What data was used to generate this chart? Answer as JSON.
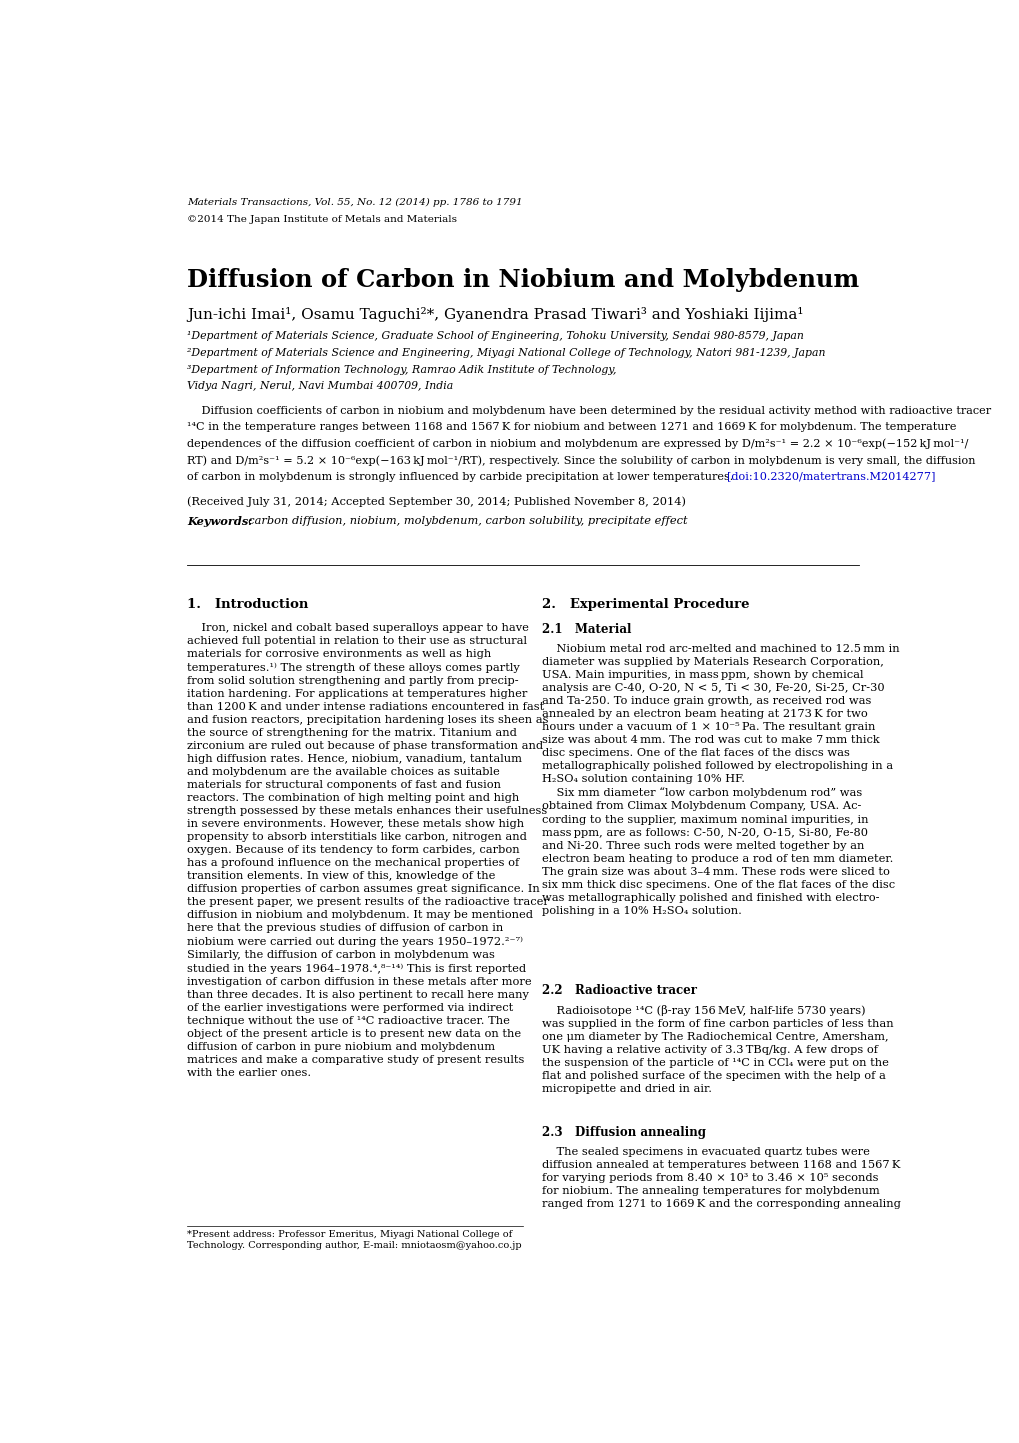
{
  "title": "Diffusion of Carbon in Niobium and Molybdenum",
  "journal_line1": "Materials Transactions, Vol. 55, No. 12 (2014) pp. 1786 to 1791",
  "journal_line2": "©2014 The Japan Institute of Metals and Materials",
  "authors": "Jun-ichi Imai¹, Osamu Taguchi²*, Gyanendra Prasad Tiwari³ and Yoshiaki Iijima¹",
  "affil1": "¹Department of Materials Science, Graduate School of Engineering, Tohoku University, Sendai 980-8579, Japan",
  "affil2": "²Department of Materials Science and Engineering, Miyagi National College of Technology, Natori 981-1239, Japan",
  "affil3": "³Department of Information Technology, Ramrao Adik Institute of Technology,",
  "affil4": "Vidya Nagri, Nerul, Navi Mumbai 400709, India",
  "abstract_line1": "    Diffusion coefficients of carbon in niobium and molybdenum have been determined by the residual activity method with radioactive tracer",
  "abstract_line2": "¹⁴C in the temperature ranges between 1168 and 1567 K for niobium and between 1271 and 1669 K for molybdenum. The temperature",
  "abstract_line3": "dependences of the diffusion coefficient of carbon in niobium and molybdenum are expressed by D/m²s⁻¹ = 2.2 × 10⁻⁶exp(−152 kJ mol⁻¹/",
  "abstract_line4": "RT) and D/m²s⁻¹ = 5.2 × 10⁻⁶exp(−163 kJ mol⁻¹/RT), respectively. Since the solubility of carbon in molybdenum is very small, the diffusion",
  "abstract_line5": "of carbon in molybdenum is strongly influenced by carbide precipitation at lower temperatures.",
  "doi": "[doi:10.2320/matertrans.M2014277]",
  "received_line": "(Received July 31, 2014; Accepted September 30, 2014; Published November 8, 2014)",
  "keywords_label": "Keywords:",
  "keywords_text": "  carbon diffusion, niobium, molybdenum, carbon solubility, precipitate effect",
  "section1_title": "1.   Introduction",
  "section2_title": "2.   Experimental Procedure",
  "subsection21_title": "2.1   Material",
  "subsection22_title": "2.2   Radioactive tracer",
  "subsection23_title": "2.3   Diffusion annealing",
  "intro_col1": "    Iron, nickel and cobalt based superalloys appear to have\nachieved full potential in relation to their use as structural\nmaterials for corrosive environments as well as high\ntemperatures.¹⁾ The strength of these alloys comes partly\nfrom solid solution strengthening and partly from precip-\nitation hardening. For applications at temperatures higher\nthan 1200 K and under intense radiations encountered in fast\nand fusion reactors, precipitation hardening loses its sheen as\nthe source of strengthening for the matrix. Titanium and\nzirconium are ruled out because of phase transformation and\nhigh diffusion rates. Hence, niobium, vanadium, tantalum\nand molybdenum are the available choices as suitable\nmaterials for structural components of fast and fusion\nreactors. The combination of high melting point and high\nstrength possessed by these metals enhances their usefulness\nin severe environments. However, these metals show high\npropensity to absorb interstitials like carbon, nitrogen and\noxygen. Because of its tendency to form carbides, carbon\nhas a profound influence on the mechanical properties of\ntransition elements. In view of this, knowledge of the\ndiffusion properties of carbon assumes great significance. In\nthe present paper, we present results of the radioactive tracer\ndiffusion in niobium and molybdenum. It may be mentioned\nhere that the previous studies of diffusion of carbon in\nniobium were carried out during the years 1950–1972.²⁻⁷⁾\nSimilarly, the diffusion of carbon in molybdenum was\nstudied in the years 1964–1978.⁴,⁸⁻¹⁴⁾ This is first reported\ninvestigation of carbon diffusion in these metals after more\nthan three decades. It is also pertinent to recall here many\nof the earlier investigations were performed via indirect\ntechnique without the use of ¹⁴C radioactive tracer. The\nobject of the present article is to present new data on the\ndiffusion of carbon in pure niobium and molybdenum\nmatrices and make a comparative study of present results\nwith the earlier ones.",
  "footnote_text": "*Present address: Professor Emeritus, Miyagi National College of\nTechnology. Corresponding author, E-mail: mniotaosm@yahoo.co.jp",
  "material_col2": "    Niobium metal rod arc-melted and machined to 12.5 mm in\ndiameter was supplied by Materials Research Corporation,\nUSA. Main impurities, in mass ppm, shown by chemical\nanalysis are C-40, O-20, N < 5, Ti < 30, Fe-20, Si-25, Cr-30\nand Ta-250. To induce grain growth, as received rod was\nannealed by an electron beam heating at 2173 K for two\nhours under a vacuum of 1 × 10⁻⁵ Pa. The resultant grain\nsize was about 4 mm. The rod was cut to make 7 mm thick\ndisc specimens. One of the flat faces of the discs was\nmetallographically polished followed by electropolishing in a\nH₂SO₄ solution containing 10% HF.\n    Six mm diameter “low carbon molybdenum rod” was\nobtained from Climax Molybdenum Company, USA. Ac-\ncording to the supplier, maximum nominal impurities, in\nmass ppm, are as follows: C-50, N-20, O-15, Si-80, Fe-80\nand Ni-20. Three such rods were melted together by an\nelectron beam heating to produce a rod of ten mm diameter.\nThe grain size was about 3–4 mm. These rods were sliced to\nsix mm thick disc specimens. One of the flat faces of the disc\nwas metallographically polished and finished with electro-\npolishing in a 10% H₂SO₄ solution.",
  "radiotracer_col2": "    Radioisotope ¹⁴C (β-ray 156 MeV, half-life 5730 years)\nwas supplied in the form of fine carbon particles of less than\none μm diameter by The Radiochemical Centre, Amersham,\nUK having a relative activity of 3.3 TBq/kg. A few drops of\nthe suspension of the particle of ¹⁴C in CCl₄ were put on the\nflat and polished surface of the specimen with the help of a\nmicropipette and dried in air.",
  "diffanneal_col2": "    The sealed specimens in evacuated quartz tubes were\ndiffusion annealed at temperatures between 1168 and 1567 K\nfor varying periods from 8.40 × 10³ to 3.46 × 10⁵ seconds\nfor niobium. The annealing temperatures for molybdenum\nranged from 1271 to 1669 K and the corresponding annealing",
  "bg_color": "#ffffff",
  "text_color": "#000000",
  "doi_color": "#0000cd"
}
